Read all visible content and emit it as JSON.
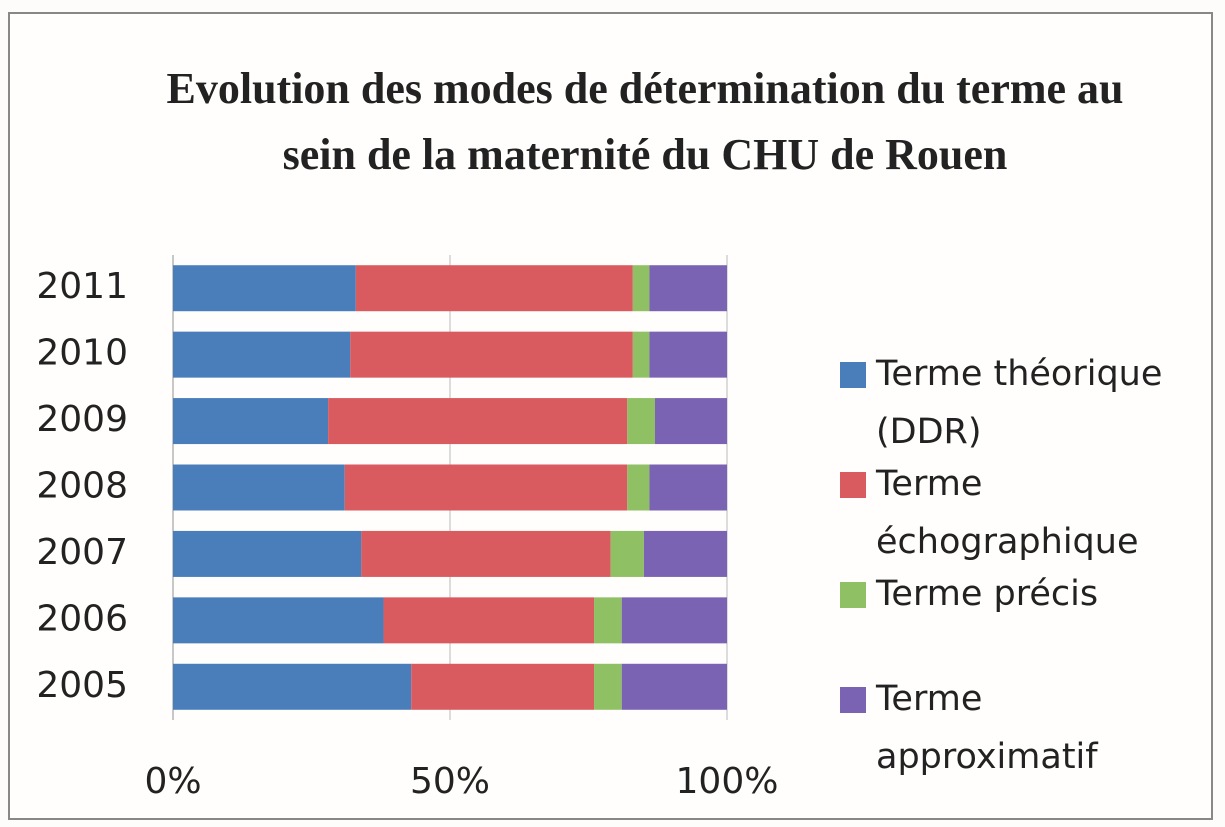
{
  "chart_data": {
    "type": "bar",
    "orientation": "horizontal",
    "stacked": true,
    "title": "Evolution des modes de détermination du terme au sein de la maternité du CHU de Rouen",
    "categories": [
      "2005",
      "2006",
      "2007",
      "2008",
      "2009",
      "2010",
      "2011"
    ],
    "series": [
      {
        "name": "Terme théorique (DDR)",
        "color": "#4a7ebb",
        "values": [
          43,
          38,
          34,
          31,
          28,
          32,
          33
        ]
      },
      {
        "name": "Terme échographique",
        "color": "#d95b5f",
        "values": [
          33,
          38,
          45,
          51,
          54,
          51,
          50
        ]
      },
      {
        "name": "Terme précis",
        "color": "#8fc064",
        "values": [
          5,
          5,
          6,
          4,
          5,
          3,
          3
        ]
      },
      {
        "name": "Terme approximatif",
        "color": "#7b63b3",
        "values": [
          19,
          19,
          15,
          14,
          13,
          14,
          14
        ]
      }
    ],
    "xlim": [
      0,
      100
    ],
    "xticks": [
      {
        "value": 0,
        "label": "0%"
      },
      {
        "value": 50,
        "label": "50%"
      },
      {
        "value": 100,
        "label": "100%"
      }
    ],
    "grid": true,
    "legend": "right"
  }
}
